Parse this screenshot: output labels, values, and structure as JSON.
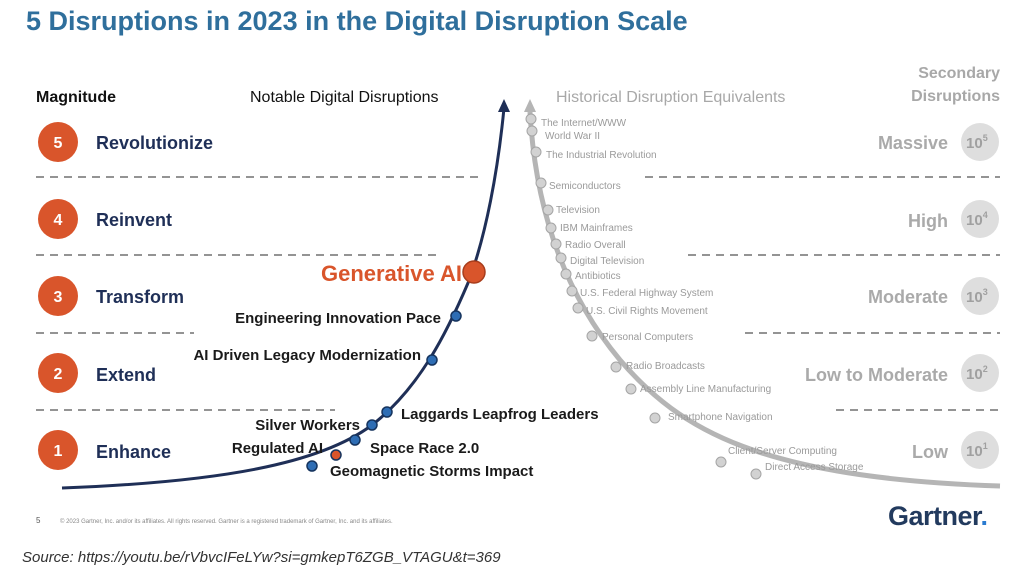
{
  "title": "5 Disruptions in 2023 in the Digital Disruption Scale",
  "headers": {
    "magnitude": "Magnitude",
    "notable": "Notable Digital Disruptions",
    "historical": "Historical Disruption Equivalents",
    "secondary_line1": "Secondary",
    "secondary_line2": "Disruptions"
  },
  "levels": [
    {
      "num": "5",
      "label": "Revolutionize",
      "secondary": "Massive",
      "power_base": "10",
      "power_exp": "5"
    },
    {
      "num": "4",
      "label": "Reinvent",
      "secondary": "High",
      "power_base": "10",
      "power_exp": "4"
    },
    {
      "num": "3",
      "label": "Transform",
      "secondary": "Moderate",
      "power_base": "10",
      "power_exp": "3"
    },
    {
      "num": "2",
      "label": "Extend",
      "secondary": "Low to Moderate",
      "power_base": "10",
      "power_exp": "2"
    },
    {
      "num": "1",
      "label": "Enhance",
      "secondary": "Low",
      "power_base": "10",
      "power_exp": "1"
    }
  ],
  "notable_disruptions": [
    {
      "label": "Generative AI",
      "color": "#d9552b",
      "highlight": true
    },
    {
      "label": "Engineering Innovation Pace",
      "color": "#2e6db4"
    },
    {
      "label": "AI Driven Legacy Modernization",
      "color": "#2e6db4"
    },
    {
      "label": "Laggards Leapfrog Leaders",
      "color": "#2e6db4"
    },
    {
      "label": "Silver Workers",
      "color": "#2e6db4"
    },
    {
      "label": "Space Race 2.0",
      "color": "#2e6db4"
    },
    {
      "label": "Regulated AI",
      "color": "#d9552b"
    },
    {
      "label": "Geomagnetic Storms Impact",
      "color": "#2e6db4"
    }
  ],
  "historical_equivalents": [
    "The Internet/WWW",
    "World War II",
    "The Industrial Revolution",
    "Semiconductors",
    "Television",
    "IBM Mainframes",
    "Radio Overall",
    "Digital Television",
    "Antibiotics",
    "U.S. Federal Highway System",
    "U.S. Civil Rights Movement",
    "Personal Computers",
    "Radio Broadcasts",
    "Assembly Line Manufacturing",
    "Smartphone Navigation",
    "Client/Server Computing",
    "Direct Access Storage"
  ],
  "page_number": "5",
  "footnote": "© 2023 Gartner, Inc. and/or its affiliates. All rights reserved. Gartner is a registered trademark of Gartner, Inc. and its affiliates.",
  "logo": {
    "text": "Gartner",
    "dot": "."
  },
  "source": "Source: https://youtu.be/rVbvcIFeLYw?si=gmkepT6ZGB_VTAGU&t=369",
  "colors": {
    "title": "#2f6f9c",
    "level_circle": "#d9552b",
    "curve": "#1f2f57",
    "blue_dot": "#2e6db4",
    "gray": "#b5b5b5",
    "level_label": "#1f2f57"
  }
}
